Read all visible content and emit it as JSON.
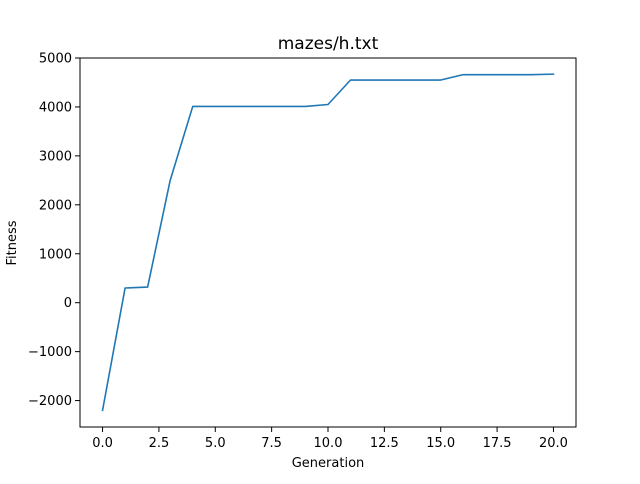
{
  "chart_data": {
    "type": "line",
    "title": "mazes/h.txt",
    "xlabel": "Generation",
    "ylabel": "Fitness",
    "xlim": [
      -1.0,
      21.0
    ],
    "ylim": [
      -2540,
      5000
    ],
    "xticks": [
      0.0,
      2.5,
      5.0,
      7.5,
      10.0,
      12.5,
      15.0,
      17.5,
      20.0
    ],
    "xtick_labels": [
      "0.0",
      "2.5",
      "5.0",
      "7.5",
      "10.0",
      "12.5",
      "15.0",
      "17.5",
      "20.0"
    ],
    "yticks": [
      -2000,
      -1000,
      0,
      1000,
      2000,
      3000,
      4000,
      5000
    ],
    "ytick_labels": [
      "−2000",
      "−1000",
      "0",
      "1000",
      "2000",
      "3000",
      "4000",
      "5000"
    ],
    "grid": false,
    "line_color": "#1f77b4",
    "series": [
      {
        "x": [
          0,
          1,
          2,
          3,
          4,
          5,
          6,
          7,
          8,
          9,
          10,
          11,
          12,
          13,
          14,
          15,
          16,
          17,
          18,
          19,
          20
        ],
        "y": [
          -2200,
          300,
          320,
          2500,
          4010,
          4010,
          4010,
          4010,
          4010,
          4010,
          4050,
          4550,
          4550,
          4550,
          4550,
          4550,
          4660,
          4660,
          4660,
          4660,
          4670
        ]
      }
    ]
  }
}
